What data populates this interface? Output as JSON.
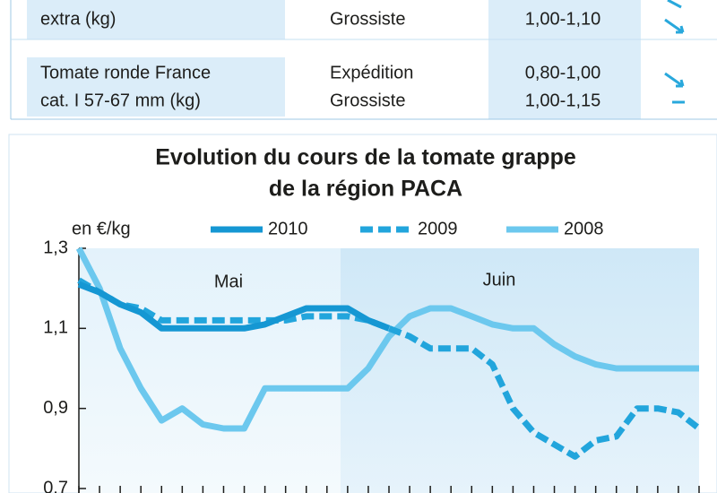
{
  "table": {
    "rows": [
      {
        "product": [
          "extra (kg)"
        ],
        "markets": [
          "Grossiste"
        ],
        "prices": [
          "1,00-1,10"
        ]
      },
      {
        "product": [
          "Tomate ronde France",
          "cat. I 57-67 mm (kg)"
        ],
        "markets": [
          "Expédition",
          "Grossiste"
        ],
        "prices": [
          "0,80-1,00",
          "1,00-1,15"
        ]
      }
    ]
  },
  "chart_data": {
    "type": "line",
    "title": [
      "Evolution du cours de la tomate grappe",
      "de la région PACA"
    ],
    "y_label": "en €/kg",
    "annotations": [
      "Mai",
      "Juin"
    ],
    "categories": [
      null,
      null,
      null,
      null,
      null,
      null,
      null,
      null,
      null,
      null,
      null,
      null,
      null,
      null,
      null,
      null,
      null,
      null,
      null,
      null,
      null,
      null,
      null,
      null,
      null,
      null,
      null,
      null,
      null,
      null,
      null
    ],
    "series": [
      {
        "name": "2010",
        "color": "#1597d3",
        "dash": false,
        "values": [
          1.21,
          1.19,
          1.16,
          1.14,
          1.1,
          1.1,
          1.1,
          1.1,
          1.1,
          1.11,
          1.13,
          1.15,
          1.15,
          1.15,
          1.12,
          1.1,
          null,
          null,
          null,
          null,
          null,
          null,
          null,
          null,
          null,
          null,
          null,
          null,
          null,
          null,
          null
        ]
      },
      {
        "name": "2009",
        "color": "#22a5dc",
        "dash": true,
        "values": [
          1.22,
          1.19,
          1.16,
          1.15,
          1.12,
          1.12,
          1.12,
          1.12,
          1.12,
          1.12,
          1.12,
          1.13,
          1.13,
          1.13,
          1.12,
          1.1,
          1.08,
          1.05,
          1.05,
          1.05,
          1.01,
          0.9,
          0.84,
          0.81,
          0.78,
          0.82,
          0.83,
          0.9,
          0.9,
          0.89,
          0.85
        ]
      },
      {
        "name": "2008",
        "color": "#6cc8ee",
        "dash": false,
        "values": [
          1.3,
          1.2,
          1.05,
          0.95,
          0.87,
          0.9,
          0.86,
          0.85,
          0.85,
          0.95,
          0.95,
          0.95,
          0.95,
          0.95,
          1.0,
          1.08,
          1.13,
          1.15,
          1.15,
          1.13,
          1.11,
          1.1,
          1.1,
          1.06,
          1.03,
          1.01,
          1.0,
          1.0,
          1.0,
          1.0,
          1.0
        ]
      }
    ],
    "ylim": [
      0.7,
      1.3
    ],
    "yticks": [
      {
        "value": 0.7,
        "label": "0,7"
      },
      {
        "value": 0.9,
        "label": "0,9"
      },
      {
        "value": 1.1,
        "label": "1,1"
      },
      {
        "value": 1.3,
        "label": "1,3"
      }
    ],
    "grid": false
  }
}
